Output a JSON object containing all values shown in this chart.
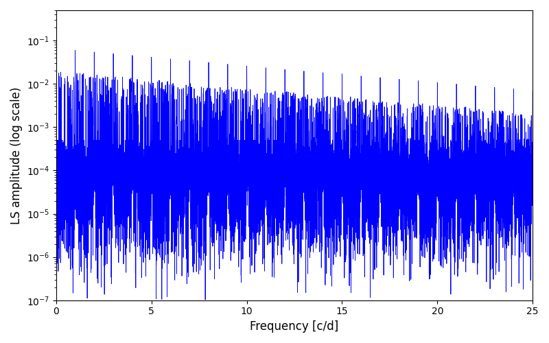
{
  "xlabel": "Frequency [c/d]",
  "ylabel": "LS amplitude (log scale)",
  "xlim": [
    0,
    25
  ],
  "ylim": [
    1e-07,
    0.5
  ],
  "line_color": "#0000ff",
  "line_width": 0.6,
  "background_color": "#ffffff",
  "figsize": [
    8.0,
    5.0
  ],
  "dpi": 100,
  "seed": 17,
  "n_freq": 15000,
  "noise_floor": 0.0001,
  "peak_amp_0": 0.065,
  "peak_decay": 0.09,
  "null_depth_min": 1e-07,
  "null_depth_max": 1e-05
}
